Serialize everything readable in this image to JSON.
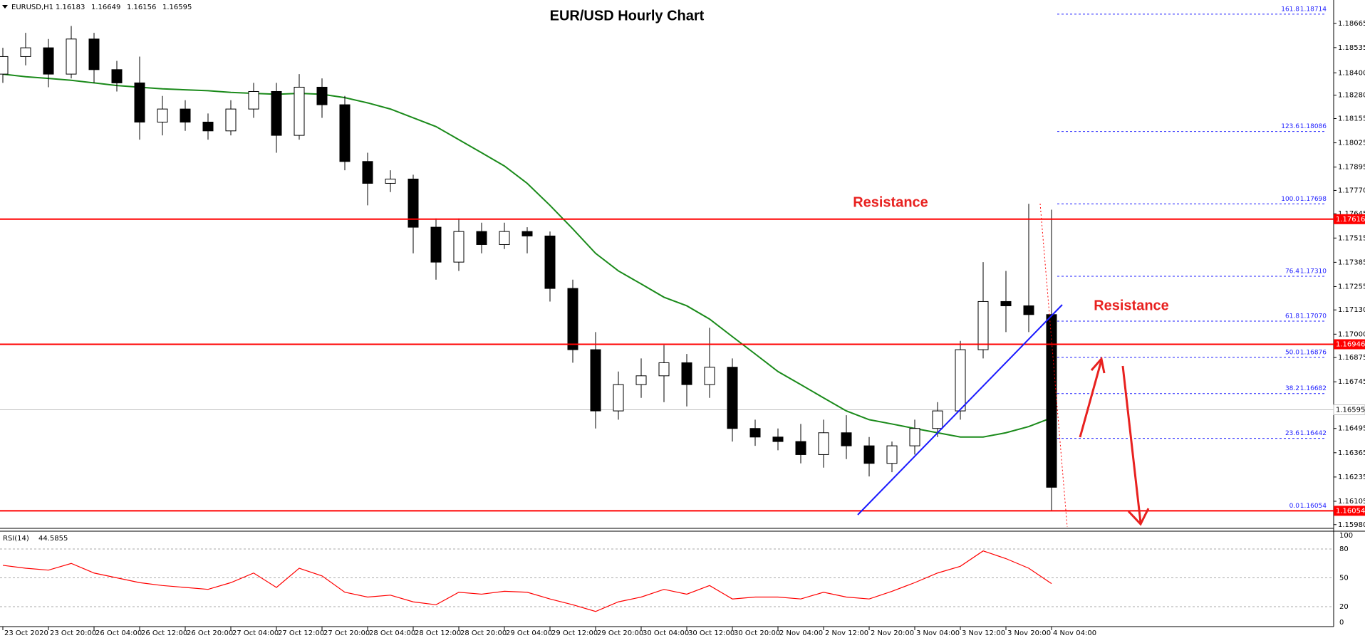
{
  "chart_data": [
    {
      "type": "candlestick",
      "title": "EUR/USD Hourly Chart",
      "instrument": "EURUSD,H1",
      "last_bar": {
        "open": 1.16183,
        "high": 1.16649,
        "low": 1.16156,
        "close": 1.16595
      },
      "categories": [
        "23 Oct 2020",
        null,
        "23 Oct 20:00",
        null,
        "26 Oct 04:00",
        null,
        "26 Oct 12:00",
        null,
        "26 Oct 20:00",
        null,
        "27 Oct 04:00",
        null,
        "27 Oct 12:00",
        null,
        "27 Oct 20:00",
        null,
        "28 Oct 04:00",
        null,
        "28 Oct 12:00",
        null,
        "28 Oct 20:00",
        null,
        "29 Oct 04:00",
        null,
        "29 Oct 12:00",
        null,
        "29 Oct 20:00",
        null,
        "30 Oct 04:00",
        null,
        "30 Oct 12:00",
        null,
        "30 Oct 20:00",
        null,
        "2 Nov 04:00",
        null,
        "2 Nov 12:00",
        null,
        "2 Nov 20:00",
        null,
        "3 Nov 04:00",
        null,
        "3 Nov 12:00",
        null,
        "3 Nov 20:00",
        null,
        "4 Nov 04:00"
      ],
      "open": [
        1.18393,
        1.18487,
        1.18534,
        1.18393,
        1.18581,
        1.18417,
        1.18346,
        1.18136,
        1.18206,
        1.18136,
        1.18089,
        1.18206,
        1.183,
        1.18065,
        1.18323,
        1.18229,
        1.17925,
        1.17808,
        1.17831,
        1.17573,
        1.17386,
        1.1755,
        1.1748,
        1.1755,
        1.17526,
        1.17245,
        1.16917,
        1.16589,
        1.1673,
        1.16777,
        1.16847,
        1.1673,
        1.16823,
        1.16495,
        1.16449,
        1.16425,
        1.16355,
        1.16472,
        1.16402,
        1.16308,
        1.16402,
        1.16495,
        1.16589,
        1.16917,
        1.17175,
        1.17152,
        1.17105
      ],
      "high": [
        1.18534,
        1.18614,
        1.18581,
        1.18651,
        1.18614,
        1.18464,
        1.18487,
        1.18276,
        1.18253,
        1.18182,
        1.18253,
        1.18346,
        1.18346,
        1.18393,
        1.1837,
        1.18276,
        1.17972,
        1.17878,
        1.17854,
        1.1762,
        1.1762,
        1.17597,
        1.17597,
        1.17573,
        1.1755,
        1.17292,
        1.17011,
        1.168,
        1.1687,
        1.16941,
        1.16894,
        1.17034,
        1.1687,
        1.16542,
        1.16495,
        1.16519,
        1.16542,
        1.16566,
        1.16449,
        1.16425,
        1.16542,
        1.16636,
        1.16964,
        1.17386,
        1.17339,
        1.17698,
        1.17667
      ],
      "low": [
        1.18346,
        1.1844,
        1.18323,
        1.1837,
        1.18346,
        1.183,
        1.18042,
        1.18065,
        1.18089,
        1.18042,
        1.18065,
        1.18159,
        1.17972,
        1.18042,
        1.18159,
        1.17878,
        1.1769,
        1.17761,
        1.17433,
        1.17292,
        1.17339,
        1.17433,
        1.17456,
        1.17433,
        1.17175,
        1.16847,
        1.16495,
        1.16542,
        1.16659,
        1.16636,
        1.16613,
        1.16659,
        1.16425,
        1.16402,
        1.16378,
        1.16308,
        1.16285,
        1.16331,
        1.16238,
        1.16261,
        1.16355,
        1.16449,
        1.16542,
        1.1687,
        1.17011,
        1.17011,
        1.16054
      ],
      "close": [
        1.18487,
        1.18534,
        1.18393,
        1.18581,
        1.18417,
        1.18346,
        1.18136,
        1.18206,
        1.18136,
        1.18089,
        1.18206,
        1.183,
        1.18065,
        1.18323,
        1.18229,
        1.17925,
        1.17808,
        1.17831,
        1.17573,
        1.17386,
        1.1755,
        1.1748,
        1.1755,
        1.17526,
        1.17245,
        1.16917,
        1.16589,
        1.1673,
        1.16777,
        1.16847,
        1.1673,
        1.16823,
        1.16495,
        1.16449,
        1.16425,
        1.16355,
        1.16472,
        1.16402,
        1.16308,
        1.16402,
        1.16495,
        1.16589,
        1.16917,
        1.17175,
        1.17152,
        1.17105,
        1.1618
      ],
      "up_color": "#ffffff",
      "down_color": "#000000",
      "overlay": {
        "color": "#1a8a1a",
        "values": [
          1.18393,
          1.18379,
          1.1837,
          1.1836,
          1.18346,
          1.18332,
          1.18323,
          1.18314,
          1.18309,
          1.18304,
          1.18295,
          1.1829,
          1.18285,
          1.1829,
          1.18285,
          1.18267,
          1.18239,
          1.18206,
          1.18159,
          1.18112,
          1.18042,
          1.17972,
          1.17901,
          1.17808,
          1.1769,
          1.17564,
          1.17433,
          1.17339,
          1.17269,
          1.17198,
          1.17152,
          1.17081,
          1.16987,
          1.16894,
          1.168,
          1.1673,
          1.16659,
          1.16589,
          1.16542,
          1.16519,
          1.16495,
          1.16472,
          1.16449,
          1.16449,
          1.16472,
          1.16505,
          1.16552
        ]
      },
      "levels": [
        {
          "value": 1.17616,
          "color": "#ff0000"
        },
        {
          "value": 1.16946,
          "color": "#ff0000"
        },
        {
          "value": 1.16054,
          "color": "#ff0000"
        }
      ],
      "current_price": {
        "value": 1.16595,
        "color": "#c0c0c0"
      },
      "fib": {
        "color": "#2020ff",
        "ratios": [
          "161.8",
          "123.6",
          "100.0",
          "76.4",
          "61.8",
          "50.0",
          "38.2",
          "23.6",
          "0.0"
        ],
        "values": [
          1.18714,
          1.18086,
          1.17698,
          1.1731,
          1.1707,
          1.16876,
          1.16682,
          1.16442,
          1.16054
        ],
        "value_labels": [
          "1.18714",
          "1.18086",
          "1.17698",
          "1.17310",
          "1.17070",
          "1.16876",
          "1.16682",
          "1.16442",
          "1.16054"
        ]
      },
      "annotations": [
        "Resistance",
        "Resistance"
      ],
      "ylim": [
        1.1596,
        1.1879
      ],
      "yticks": [
        {
          "value": 1.1598,
          "label": "1.15980"
        },
        1.16105,
        1.16235,
        1.16365,
        1.16495,
        1.16745,
        1.16875,
        {
          "value": 1.17,
          "label": "1.17000"
        },
        {
          "value": 1.1713,
          "label": "1.17130"
        },
        1.17255,
        1.17385,
        1.17515,
        1.17645,
        {
          "value": 1.1777,
          "label": "1.17770"
        },
        1.17895,
        1.18025,
        1.18155,
        {
          "value": 1.1828,
          "label": "1.18280"
        },
        {
          "value": 1.184,
          "label": "1.18400"
        },
        1.18535,
        1.18665
      ]
    },
    {
      "type": "line",
      "title": "RSI(14)",
      "current": 44.5855,
      "color": "#ff0000",
      "values": [
        63,
        60,
        58,
        65,
        55,
        50,
        45,
        42,
        40,
        38,
        45,
        55,
        40,
        60,
        52,
        35,
        30,
        32,
        25,
        22,
        35,
        33,
        36,
        35,
        28,
        22,
        15,
        25,
        30,
        38,
        33,
        42,
        28,
        30,
        30,
        28,
        35,
        30,
        28,
        36,
        45,
        55,
        62,
        78,
        70,
        60,
        44
      ],
      "ylim": [
        0,
        100
      ],
      "yticks": [
        0,
        20,
        50,
        80,
        100
      ]
    }
  ]
}
